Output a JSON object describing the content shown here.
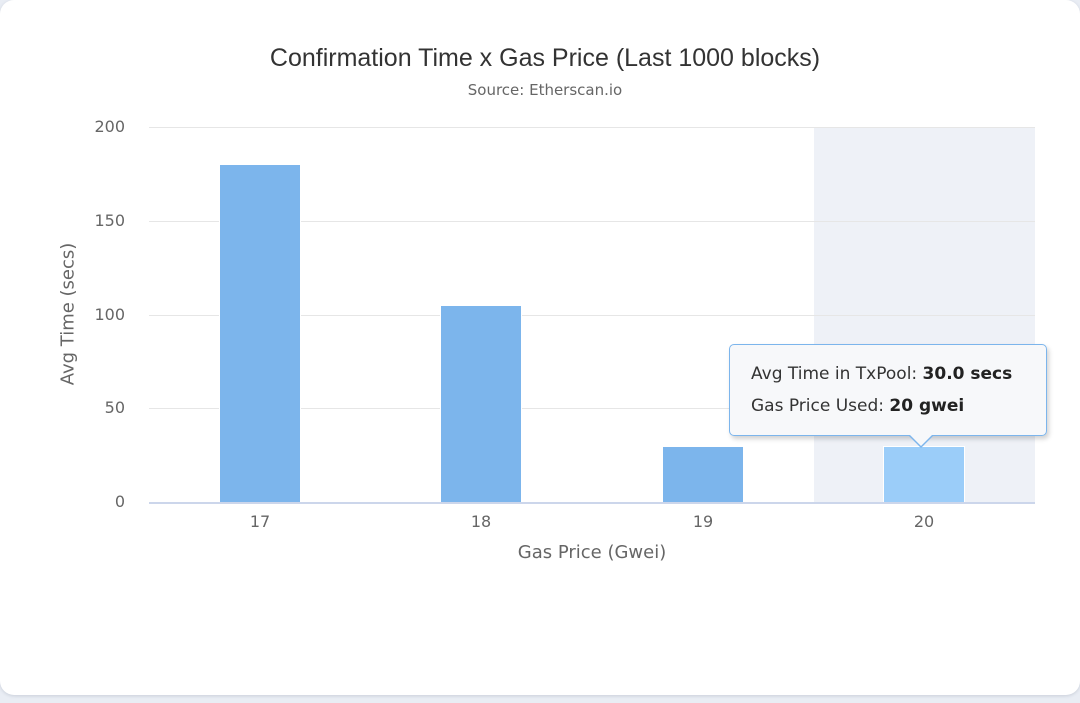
{
  "chart": {
    "title": "Confirmation Time x Gas Price (Last 1000 blocks)",
    "subtitle": "Source: Etherscan.io",
    "x_axis_title": "Gas Price (Gwei)",
    "y_axis_title": "Avg Time (secs)"
  },
  "chart_data": {
    "type": "bar",
    "title": "Confirmation Time x Gas Price (Last 1000 blocks)",
    "subtitle": "Source: Etherscan.io",
    "xlabel": "Gas Price (Gwei)",
    "ylabel": "Avg Time (secs)",
    "categories": [
      "17",
      "18",
      "19",
      "20"
    ],
    "series": [
      {
        "name": "Avg Time in TxPool",
        "values": [
          180,
          105,
          30,
          30
        ]
      }
    ],
    "ylim": [
      0,
      200
    ],
    "yticks": [
      0,
      50,
      100,
      150,
      200
    ],
    "grid": "horizontal",
    "legend": "none",
    "hovered_index": 3
  },
  "tooltip": {
    "line1_label": "Avg Time in TxPool: ",
    "line1_value": "30.0 secs",
    "line2_label": "Gas Price Used: ",
    "line2_value": "20 gwei"
  },
  "colors": {
    "page_bg": "#e9edf4",
    "card_bg": "#ffffff",
    "bar": "#7cb5ec",
    "bar_hover": "#9bcdf9",
    "hover_band": "#eef1f7",
    "gridline": "#e6e6e6",
    "axis_line": "#ccd6eb",
    "title_text": "#333333",
    "secondary_text": "#666666",
    "tooltip_border": "#7cb5ec",
    "tooltip_bg": "#f7f8fa"
  }
}
